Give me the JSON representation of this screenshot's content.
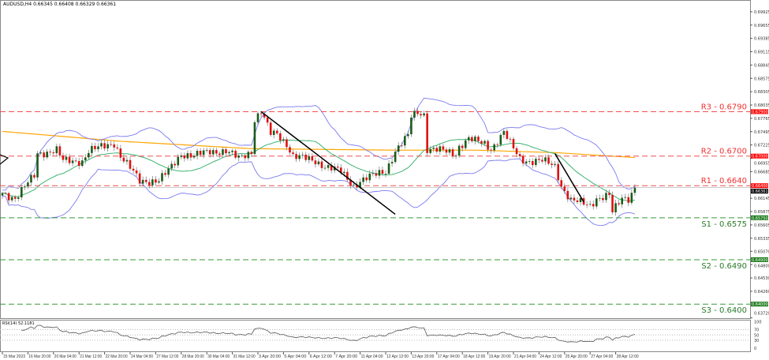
{
  "header": {
    "symbol_info": "AUDUSD,H4  0.66345 0.66408 0.66329 0.66361"
  },
  "chart_data": {
    "type": "candlestick",
    "symbol": "AUDUSD",
    "timeframe": "H4",
    "ohlc_last": {
      "open": 0.66345,
      "high": 0.66408,
      "low": 0.66329,
      "close": 0.66361
    },
    "current_price_label": "0.66361",
    "y_ticks": [
      "0.69925",
      "0.69655",
      "0.69385",
      "0.69115",
      "0.68845",
      "0.68575",
      "0.68305",
      "0.68035",
      "0.67765",
      "0.67495",
      "0.67225",
      "0.66955",
      "0.66685",
      "0.66145",
      "0.65875",
      "0.65605",
      "0.65335",
      "0.65070",
      "0.64800",
      "0.64530",
      "0.64260",
      "0.63720"
    ],
    "x_ticks": [
      "15 Mar 2023",
      "16 Mar 20:00",
      "20 Mar 04:00",
      "21 Mar 12:00",
      "22 Mar 20:00",
      "24 Mar 04:00",
      "27 Mar 12:00",
      "28 Mar 20:00",
      "30 Mar 04:00",
      "31 Mar 12:00",
      "3 Apr 20:00",
      "5 Apr 04:00",
      "6 Apr 12:00",
      "7 Apr 20:00",
      "11 Apr 04:00",
      "12 Apr 12:00",
      "13 Apr 20:00",
      "17 Apr 04:00",
      "18 Apr 12:00",
      "19 Apr 20:00",
      "21 Apr 04:00",
      "24 Apr 12:00",
      "25 Apr 20:00",
      "27 Apr 04:00",
      "28 Apr 12:00"
    ],
    "x_tick_every_bars": 8,
    "close_path": [
      [
        0,
        0.6625
      ],
      [
        4,
        0.6615
      ],
      [
        10,
        0.666
      ],
      [
        11,
        0.6705
      ],
      [
        17,
        0.6712
      ],
      [
        19,
        0.669
      ],
      [
        25,
        0.669
      ],
      [
        27,
        0.671
      ],
      [
        35,
        0.6727
      ],
      [
        37,
        0.67
      ],
      [
        43,
        0.665
      ],
      [
        49,
        0.665
      ],
      [
        52,
        0.667
      ],
      [
        56,
        0.6705
      ],
      [
        60,
        0.67
      ],
      [
        65,
        0.671
      ],
      [
        70,
        0.671
      ],
      [
        74,
        0.6695
      ],
      [
        78,
        0.671
      ],
      [
        79,
        0.6775
      ],
      [
        81,
        0.679
      ],
      [
        84,
        0.6745
      ],
      [
        86,
        0.6745
      ],
      [
        89,
        0.6725
      ],
      [
        91,
        0.67
      ],
      [
        98,
        0.669
      ],
      [
        101,
        0.668
      ],
      [
        106,
        0.6668
      ],
      [
        110,
        0.664
      ],
      [
        112,
        0.665
      ],
      [
        116,
        0.666
      ],
      [
        120,
        0.667
      ],
      [
        123,
        0.671
      ],
      [
        127,
        0.674
      ],
      [
        128,
        0.678
      ],
      [
        130,
        0.679
      ],
      [
        132,
        0.6785
      ],
      [
        133,
        0.6715
      ],
      [
        138,
        0.671
      ],
      [
        142,
        0.6705
      ],
      [
        143,
        0.672
      ],
      [
        146,
        0.6735
      ],
      [
        148,
        0.673
      ],
      [
        151,
        0.6725
      ],
      [
        153,
        0.6715
      ],
      [
        157,
        0.6748
      ],
      [
        159,
        0.6725
      ],
      [
        162,
        0.6695
      ],
      [
        165,
        0.669
      ],
      [
        169,
        0.669
      ],
      [
        173,
        0.668
      ],
      [
        175,
        0.664
      ],
      [
        178,
        0.661
      ],
      [
        181,
        0.6605
      ],
      [
        184,
        0.66
      ],
      [
        186,
        0.6615
      ],
      [
        190,
        0.662
      ],
      [
        191,
        0.6585
      ],
      [
        194,
        0.6615
      ],
      [
        196,
        0.6615
      ],
      [
        198,
        0.66361
      ]
    ],
    "ma_slow_path": [
      [
        0,
        0.675
      ],
      [
        37,
        0.673
      ],
      [
        78,
        0.6715
      ],
      [
        123,
        0.6712
      ],
      [
        148,
        0.6712
      ],
      [
        173,
        0.6707
      ],
      [
        198,
        0.6697
      ]
    ],
    "indicators": [
      "Bollinger Bands (20,2)",
      "SMA 20",
      "SMA 200",
      "RSI(14)"
    ],
    "colors": {
      "bull": "#1a5c1a",
      "bear": "#e01010",
      "bands": "#7b7bef",
      "ma_fast": "#3cb371",
      "ma_slow": "#ffa500",
      "resistance": "#f05050",
      "support": "#3a9a3a"
    },
    "levels": [
      {
        "name": "R3",
        "label": "R3 - 0.6790",
        "price": 0.679,
        "tag": "0.67900",
        "kind": "resistance"
      },
      {
        "name": "R2",
        "label": "R2 - 0.6700",
        "price": 0.67,
        "tag": "0.67000",
        "kind": "resistance"
      },
      {
        "name": "R1",
        "label": "R1 - 0.6640",
        "price": 0.664,
        "tag": "0.66400",
        "kind": "resistance"
      },
      {
        "name": "S1",
        "label": "S1 - 0.6575",
        "price": 0.6575,
        "tag": "0.65750",
        "kind": "support"
      },
      {
        "name": "S2",
        "label": "S2 - 0.6490",
        "price": 0.649,
        "tag": "0.64900",
        "kind": "support"
      },
      {
        "name": "S3",
        "label": "S3 - 0.6400",
        "price": 0.64,
        "tag": "0.64000",
        "kind": "support"
      }
    ],
    "trendlines": [
      {
        "from": [
          81,
          0.679
        ],
        "to": [
          123,
          0.6582
        ]
      },
      {
        "from": [
          173,
          0.6705
        ],
        "to": [
          182,
          0.6607
        ]
      }
    ],
    "rsi": {
      "label": "RSI(14) 52.1181",
      "value": 52.1181,
      "ticks": [
        "100",
        "70",
        "50",
        "30",
        "0"
      ],
      "range": [
        0,
        100
      ]
    }
  }
}
